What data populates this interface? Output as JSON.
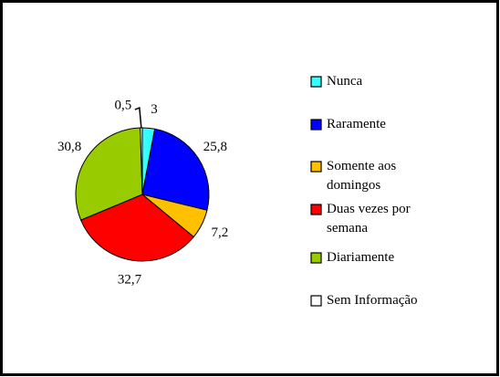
{
  "chart_data": {
    "type": "pie",
    "categories": [
      "Nunca",
      "Raramente",
      "Somente aos domingos",
      "Duas vezes por semana",
      "Diariamente",
      "Sem Informação"
    ],
    "values": [
      3,
      25.8,
      7.2,
      32.7,
      30.8,
      0.5
    ],
    "value_labels": [
      "3",
      "25,8",
      "7,2",
      "32,7",
      "30,8",
      "0,5"
    ],
    "colors": [
      "#33ffff",
      "#0000ff",
      "#ffc000",
      "#ff0000",
      "#99cc00",
      "#ffffff"
    ],
    "legend": "right"
  }
}
